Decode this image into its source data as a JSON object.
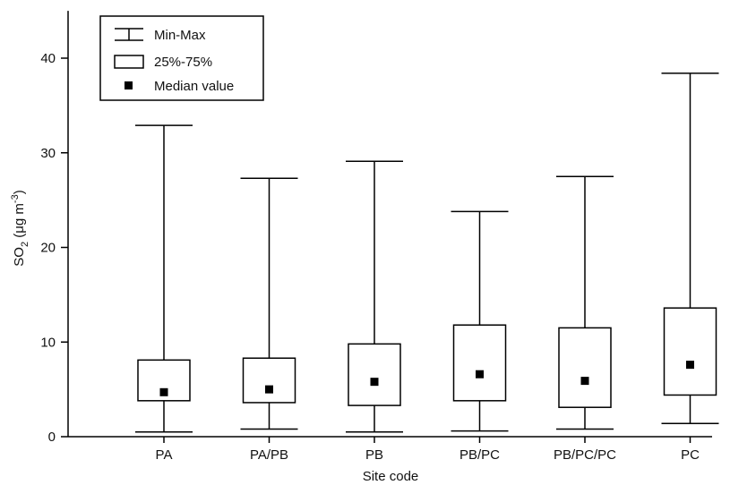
{
  "chart_data": {
    "type": "boxplot",
    "title": "",
    "xlabel": "Site code",
    "ylabel": {
      "main": "SO",
      "subscript": "2",
      "unit_open": " (μg m",
      "superscript": "-3",
      "unit_close": ")"
    },
    "ylim": [
      0,
      45
    ],
    "yticks": [
      0,
      10,
      20,
      30,
      40
    ],
    "grid": false,
    "legend_position": "top-left",
    "legend": {
      "minmax": "Min-Max",
      "iqr": "25%-75%",
      "median": "Median value"
    },
    "categories": [
      "PA",
      "PA/PB",
      "PB",
      "PB/PC",
      "PB/PC/PC",
      "PC"
    ],
    "boxes": [
      {
        "category": "PA",
        "min": 0.5,
        "q1": 3.8,
        "median": 4.7,
        "q3": 8.1,
        "max": 32.9
      },
      {
        "category": "PA/PB",
        "min": 0.8,
        "q1": 3.6,
        "median": 5.0,
        "q3": 8.3,
        "max": 27.3
      },
      {
        "category": "PB",
        "min": 0.5,
        "q1": 3.3,
        "median": 5.8,
        "q3": 9.8,
        "max": 29.1
      },
      {
        "category": "PB/PC",
        "min": 0.6,
        "q1": 3.8,
        "median": 6.6,
        "q3": 11.8,
        "max": 23.8
      },
      {
        "category": "PB/PC/PC",
        "min": 0.8,
        "q1": 3.1,
        "median": 5.9,
        "q3": 11.5,
        "max": 27.5
      },
      {
        "category": "PC",
        "min": 1.4,
        "q1": 4.4,
        "median": 7.6,
        "q3": 13.6,
        "max": 38.4
      }
    ]
  }
}
